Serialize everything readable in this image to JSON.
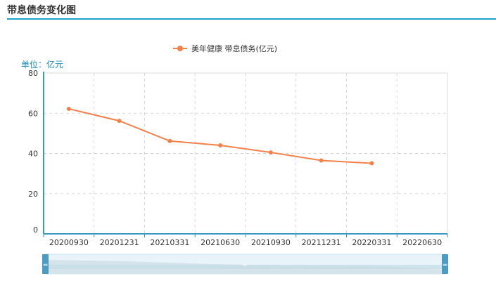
{
  "header": {
    "title": "带息债务变化图"
  },
  "colors": {
    "accent": "#1aa3c6",
    "series": "#f4804a",
    "axis": "#3a98c4"
  },
  "chart_data": {
    "type": "line",
    "title": "",
    "unit_label": "单位：亿元",
    "categories": [
      "20200930",
      "20201231",
      "20210331",
      "20210630",
      "20210930",
      "20211231",
      "20220331",
      "20220630"
    ],
    "series": [
      {
        "name": "美年健康 带息债务(亿元)",
        "values": [
          62.2,
          56.2,
          46.2,
          44.0,
          40.5,
          36.5,
          35.1,
          null
        ]
      }
    ],
    "ylim": [
      0,
      80
    ],
    "yticks": [
      0,
      20,
      40,
      60,
      80
    ],
    "grid": true,
    "legend": "top-center",
    "datazoom_slider": true
  }
}
